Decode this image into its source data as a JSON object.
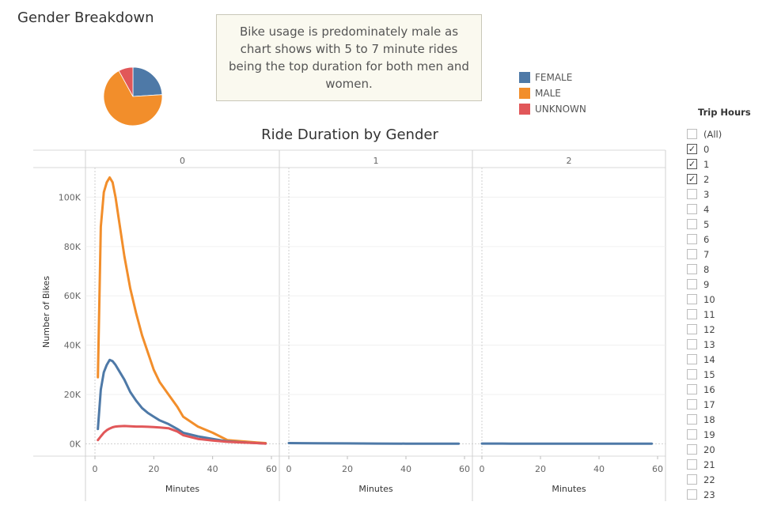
{
  "header": {
    "title": "Gender Breakdown"
  },
  "annotation": {
    "text": "Bike usage is predominately male as chart shows with 5 to 7 minute rides being the top duration for both men and women."
  },
  "legend": {
    "items": [
      {
        "label": "FEMALE",
        "color": "#4e79a7"
      },
      {
        "label": "MALE",
        "color": "#f28e2b"
      },
      {
        "label": "UNKNOWN",
        "color": "#e15759"
      }
    ]
  },
  "filter": {
    "title": "Trip Hours",
    "items": [
      {
        "label": "(All)",
        "checked": false
      },
      {
        "label": "0",
        "checked": true
      },
      {
        "label": "1",
        "checked": true
      },
      {
        "label": "2",
        "checked": true
      },
      {
        "label": "3",
        "checked": false
      },
      {
        "label": "4",
        "checked": false
      },
      {
        "label": "5",
        "checked": false
      },
      {
        "label": "6",
        "checked": false
      },
      {
        "label": "7",
        "checked": false
      },
      {
        "label": "8",
        "checked": false
      },
      {
        "label": "9",
        "checked": false
      },
      {
        "label": "10",
        "checked": false
      },
      {
        "label": "11",
        "checked": false
      },
      {
        "label": "12",
        "checked": false
      },
      {
        "label": "13",
        "checked": false
      },
      {
        "label": "14",
        "checked": false
      },
      {
        "label": "15",
        "checked": false
      },
      {
        "label": "16",
        "checked": false
      },
      {
        "label": "17",
        "checked": false
      },
      {
        "label": "18",
        "checked": false
      },
      {
        "label": "19",
        "checked": false
      },
      {
        "label": "20",
        "checked": false
      },
      {
        "label": "21",
        "checked": false
      },
      {
        "label": "22",
        "checked": false
      },
      {
        "label": "23",
        "checked": false
      }
    ]
  },
  "chart_data": [
    {
      "type": "pie",
      "series": [
        {
          "name": "FEMALE",
          "value": 24,
          "color": "#4e79a7"
        },
        {
          "name": "MALE",
          "value": 68,
          "color": "#f28e2b"
        },
        {
          "name": "UNKNOWN",
          "value": 8,
          "color": "#e15759"
        }
      ]
    },
    {
      "type": "line",
      "title": "Ride Duration by Gender",
      "xlabel": "Minutes",
      "ylabel": "Number of Bikes",
      "ylim": [
        -5000,
        112000
      ],
      "xlim": [
        -3,
        63
      ],
      "yticks": [
        0,
        20000,
        40000,
        60000,
        80000,
        100000
      ],
      "ytick_labels": [
        "0K",
        "20K",
        "40K",
        "60K",
        "80K",
        "100K"
      ],
      "xticks": [
        0,
        20,
        40,
        60
      ],
      "grid": true,
      "panels": [
        {
          "label": "0",
          "series": [
            {
              "name": "MALE",
              "color": "#f28e2b",
              "x": [
                1,
                2,
                3,
                4,
                5,
                6,
                7,
                8,
                10,
                12,
                14,
                16,
                18,
                20,
                22,
                25,
                28,
                30,
                35,
                40,
                45,
                50,
                55,
                58
              ],
              "y": [
                27000,
                88000,
                102000,
                106000,
                108000,
                106000,
                100000,
                92000,
                76000,
                63000,
                53000,
                44000,
                37000,
                30000,
                25000,
                20000,
                15000,
                11000,
                7000,
                4500,
                1500,
                1000,
                500,
                300
              ]
            },
            {
              "name": "FEMALE",
              "color": "#4e79a7",
              "x": [
                1,
                2,
                3,
                4,
                5,
                6,
                7,
                8,
                10,
                12,
                14,
                16,
                18,
                20,
                22,
                25,
                28,
                30,
                35,
                40,
                45,
                50,
                55,
                58
              ],
              "y": [
                6000,
                22000,
                29000,
                32000,
                34000,
                33500,
                32000,
                30000,
                26000,
                21000,
                17500,
                14500,
                12500,
                11000,
                9500,
                8000,
                6000,
                4500,
                3000,
                2000,
                1000,
                600,
                300,
                100
              ]
            },
            {
              "name": "UNKNOWN",
              "color": "#e15759",
              "x": [
                1,
                2,
                3,
                4,
                5,
                6,
                7,
                8,
                10,
                12,
                14,
                16,
                18,
                20,
                22,
                25,
                28,
                30,
                35,
                40,
                45,
                50,
                55,
                58
              ],
              "y": [
                1500,
                3000,
                4500,
                5500,
                6200,
                6700,
                7000,
                7100,
                7200,
                7100,
                7000,
                7000,
                6900,
                6800,
                6600,
                6300,
                5000,
                3500,
                2000,
                1300,
                800,
                500,
                300,
                100
              ]
            }
          ]
        },
        {
          "label": "1",
          "series": [
            {
              "name": "FEMALE",
              "color": "#4e79a7",
              "x": [
                0,
                10,
                20,
                30,
                40,
                50,
                58
              ],
              "y": [
                300,
                200,
                150,
                100,
                80,
                60,
                50
              ]
            }
          ]
        },
        {
          "label": "2",
          "series": [
            {
              "name": "FEMALE",
              "color": "#4e79a7",
              "x": [
                0,
                10,
                20,
                30,
                40,
                50,
                58
              ],
              "y": [
                100,
                80,
                70,
                60,
                50,
                40,
                30
              ]
            }
          ]
        }
      ]
    }
  ]
}
